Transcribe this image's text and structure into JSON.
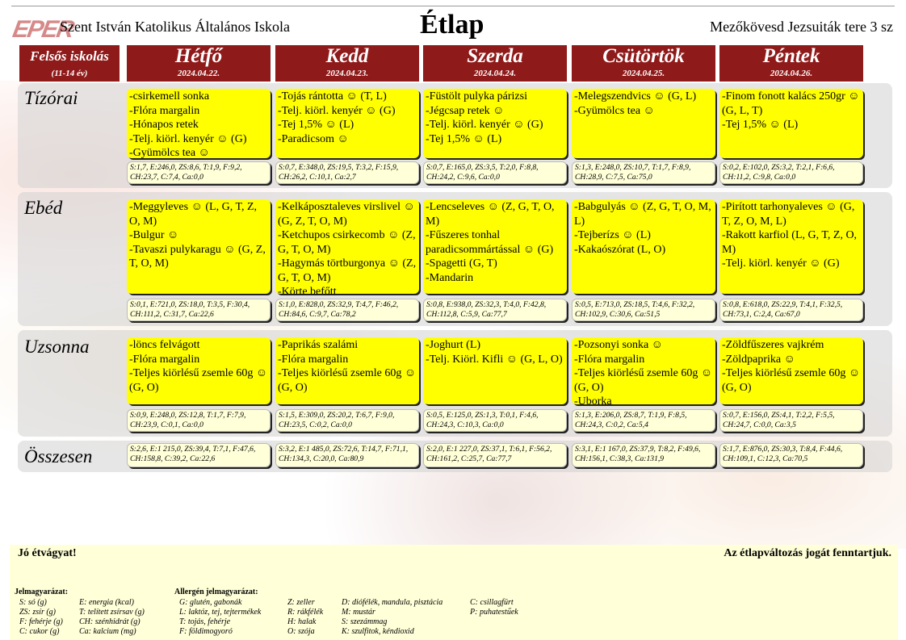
{
  "header": {
    "logo_text": "EPER",
    "school": "Szent István Katolikus Általános Iskola",
    "title": "Étlap",
    "address": "Mezőkövesd Jezsuiták tere 3 sz"
  },
  "group": {
    "label": "Felsős iskolás",
    "age": "(11-14 év)"
  },
  "rows": {
    "tizorai": "Tízórai",
    "ebed": "Ebéd",
    "uzsonna": "Uzsonna",
    "osszesen": "Összesen"
  },
  "days": [
    {
      "name": "Hétfő",
      "date": "2024.04.22.",
      "tizorai": "-csirkemell sonka\n-Flóra margalin\n-Hónapos retek\n-Telj. kiörl. kenyér ☺ (G)\n-Gyümölcs tea ☺",
      "tizorai_nutr": "S:1,7, E:246,0, ZS:8,6, T:1,9, F:9,2, CH:23,7, C:7,4, Ca:0,0",
      "ebed": "-Meggyleves ☺ (L, G, T, Z, O, M)\n-Bulgur ☺\n-Tavaszi pulykaragu ☺ (G, Z, T, O, M)",
      "ebed_nutr": "S:0,1, E:721,0, ZS:18,0, T:3,5, F:30,4, CH:111,2, C:31,7, Ca:22,6",
      "uzsonna": "-löncs felvágott\n-Flóra margalin\n-Teljes kiörlésű zsemle 60g ☺ (G, O)",
      "uzsonna_nutr": "S:0,9, E:248,0, ZS:12,8, T:1,7, F:7,9, CH:23,9, C:0,1, Ca:0,0",
      "osszesen": "S:2,6, E:1 215,0, ZS:39,4, T:7,1, F:47,6, CH:158,8, C:39,2, Ca:22,6"
    },
    {
      "name": "Kedd",
      "date": "2024.04.23.",
      "tizorai": "-Tojás rántotta ☺ (T, L)\n-Telj. kiörl. kenyér ☺ (G)\n-Tej 1,5% ☺ (L)\n-Paradicsom ☺",
      "tizorai_nutr": "S:0,7, E:348,0, ZS:19,5, T:3,2, F:15,9, CH:26,2, C:10,1, Ca:2,7",
      "ebed": "-Kelkáposztaleves virslivel ☺ (G, Z, T, O, M)\n-Ketchupos csirkecomb ☺ (Z, G, T, O, M)\n-Hagymás törtburgonya ☺ (Z, G, T, O, M)\n-Körte befőtt",
      "ebed_nutr": "S:1,0, E:828,0, ZS:32,9, T:4,7, F:46,2, CH:84,6, C:9,7, Ca:78,2",
      "uzsonna": "-Paprikás szalámi\n-Flóra margalin\n-Teljes kiörlésű zsemle 60g ☺ (G, O)",
      "uzsonna_nutr": "S:1,5, E:309,0, ZS:20,2, T:6,7, F:9,0, CH:23,5, C:0,2, Ca:0,0",
      "osszesen": "S:3,2, E:1 485,0, ZS:72,6, T:14,7, F:71,1, CH:134,3, C:20,0, Ca:80,9"
    },
    {
      "name": "Szerda",
      "date": "2024.04.24.",
      "tizorai": "-Füstölt pulyka párizsi\n-Jégcsap retek ☺\n-Telj. kiörl. kenyér ☺ (G)\n-Tej 1,5% ☺ (L)",
      "tizorai_nutr": "S:0,7, E:165,0, ZS:3,5, T:2,0, F:8,8, CH:24,2, C:9,6, Ca:0,0",
      "ebed": "-Lencseleves ☺ (Z, G, T, O, M)\n-Fűszeres tonhal paradicsommártással ☺ (G)\n-Spagetti (G, T)\n-Mandarin",
      "ebed_nutr": "S:0,8, E:938,0, ZS:32,3, T:4,0, F:42,8, CH:112,8, C:5,9, Ca:77,7",
      "uzsonna": "-Joghurt (L)\n-Telj. Kiörl. Kifli ☺ (G, L, O)",
      "uzsonna_nutr": "S:0,5, E:125,0, ZS:1,3, T:0,1, F:4,6, CH:24,3, C:10,3, Ca:0,0",
      "osszesen": "S:2,0, E:1 227,0, ZS:37,1, T:6,1, F:56,2, CH:161,2, C:25,7, Ca:77,7"
    },
    {
      "name": "Csütörtök",
      "date": "2024.04.25.",
      "tizorai": "-Melegszendvics ☺ (G, L)\n-Gyümölcs tea ☺",
      "tizorai_nutr": "S:1,3, E:248,0, ZS:10,7, T:1,7, F:8,9, CH:28,9, C:7,5, Ca:75,0",
      "ebed": "-Babgulyás ☺ (Z, G, T, O, M, L)\n-Tejberízs ☺ (L)\n-Kakaószórat (L, O)",
      "ebed_nutr": "S:0,5, E:713,0, ZS:18,5, T:4,6, F:32,2, CH:102,9, C:30,6, Ca:51,5",
      "uzsonna": "-Pozsonyi sonka ☺\n-Flóra margalin\n-Teljes kiörlésű zsemle 60g ☺ (G, O)\n-Uborka",
      "uzsonna_nutr": "S:1,3, E:206,0, ZS:8,7, T:1,9, F:8,5, CH:24,3, C:0,2, Ca:5,4",
      "osszesen": "S:3,1, E:1 167,0, ZS:37,9, T:8,2, F:49,6, CH:156,1, C:38,3, Ca:131,9"
    },
    {
      "name": "Péntek",
      "date": "2024.04.26.",
      "tizorai": "-Finom fonott kalács 250gr ☺ (G, L, T)\n-Tej 1,5% ☺ (L)",
      "tizorai_nutr": "S:0,2, E:102,0, ZS:3,2, T:2,1, F:6,6, CH:11,2, C:9,8, Ca:0,0",
      "ebed": "-Pirított tarhonyaleves ☺ (G, T, Z, O, M, L)\n-Rakott karfiol (L, G, T, Z, O, M)\n-Telj. kiörl. kenyér ☺ (G)",
      "ebed_nutr": "S:0,8, E:618,0, ZS:22,9, T:4,1, F:32,5, CH:73,1, C:2,4, Ca:67,0",
      "uzsonna": "-Zöldfűszeres vajkrém\n-Zöldpaprika ☺\n-Teljes kiörlésű zsemle 60g ☺ (G, O)",
      "uzsonna_nutr": "S:0,7, E:156,0, ZS:4,1, T:2,2, F:5,5, CH:24,7, C:0,0, Ca:3,5",
      "osszesen": "S:1,7, E:876,0, ZS:30,3, T:8,4, F:44,6, CH:109,1, C:12,3, Ca:70,5"
    }
  ],
  "footer": {
    "good_appetite": "Jó étvágyat!",
    "notice": "Az étlapváltozás jogát fenntartjuk.",
    "legend_title": "Jelmagyarázat:",
    "legend_col1": [
      "S: só (g)",
      "ZS: zsír (g)",
      "F: fehérje (g)",
      "C: cukor (g)"
    ],
    "legend_col2": [
      "E: energia (kcal)",
      "T: telített zsírsav (g)",
      "CH: szénhidrát (g)",
      "Ca: kalcium (mg)"
    ],
    "allergen_title": "Allergén jelmagyarázat:",
    "allergen_col1": [
      "G: glutén, gabonák",
      "L: laktóz, tej, tejtermékek",
      "T: tojás, fehérje",
      "F: földimogyoró"
    ],
    "allergen_col2": [
      "Z: zeller",
      "R: rákfélék",
      "H: halak",
      "O: szója"
    ],
    "allergen_col3": [
      "D: diófélék, mandula, pisztácia",
      "M: mustár",
      "S: szezámmag",
      "K: szulfitok, kéndioxid"
    ],
    "allergen_col4": [
      "C: csillagfürt",
      "P: puhatestűek"
    ]
  }
}
